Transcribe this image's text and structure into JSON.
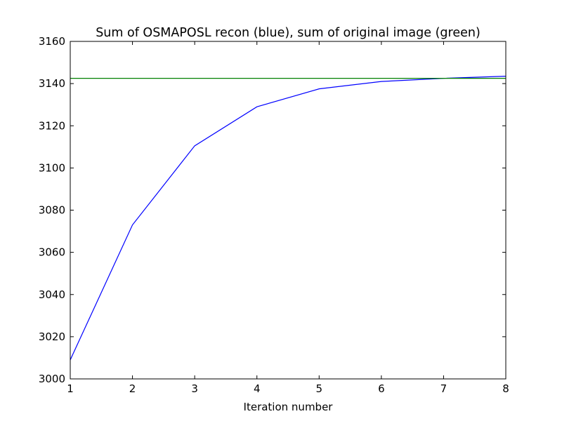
{
  "chart_data": {
    "type": "line",
    "title": "Sum of OSMAPOSL recon (blue), sum of original image (green)",
    "xlabel": "Iteration number",
    "ylabel": "",
    "xlim": [
      1,
      8
    ],
    "ylim": [
      3000,
      3160
    ],
    "xticks": [
      1,
      2,
      3,
      4,
      5,
      6,
      7,
      8
    ],
    "yticks": [
      3000,
      3020,
      3040,
      3060,
      3080,
      3100,
      3120,
      3140,
      3160
    ],
    "grid": false,
    "legend": "none",
    "series": [
      {
        "color": "#0000ff",
        "x": [
          1,
          2,
          3,
          4,
          5,
          6,
          7,
          8
        ],
        "y": [
          3009,
          3073,
          3110.5,
          3129,
          3137.5,
          3141,
          3142.5,
          3143.5
        ]
      },
      {
        "color": "#008000",
        "x": [
          1,
          8
        ],
        "y": [
          3142.5,
          3142.5
        ]
      }
    ]
  }
}
